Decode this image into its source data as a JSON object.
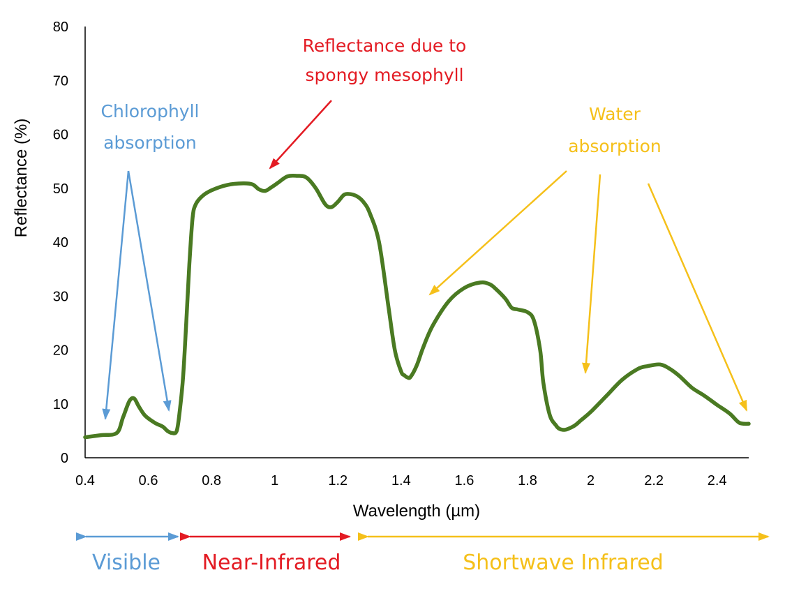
{
  "chart_data": {
    "type": "line",
    "xlabel": "Wavelength (µm)",
    "ylabel": "Reflectance (%)",
    "xlim": [
      0.4,
      2.5
    ],
    "ylim": [
      0,
      80
    ],
    "x_ticks": [
      "0.4",
      "0.6",
      "0.8",
      "1",
      "1.2",
      "1.4",
      "1.6",
      "1.8",
      "2",
      "2.2",
      "2.4"
    ],
    "x_tick_values": [
      0.4,
      0.6,
      0.8,
      1.0,
      1.2,
      1.4,
      1.6,
      1.8,
      2.0,
      2.2,
      2.4
    ],
    "y_ticks": [
      "0",
      "10",
      "20",
      "30",
      "40",
      "50",
      "60",
      "70",
      "80"
    ],
    "y_tick_values": [
      0,
      10,
      20,
      30,
      40,
      50,
      60,
      70,
      80
    ],
    "grid": false,
    "legend": "none",
    "series": [
      {
        "color": "#4a7a22",
        "x": [
          0.4,
          0.45,
          0.5,
          0.52,
          0.54,
          0.555,
          0.57,
          0.59,
          0.62,
          0.645,
          0.66,
          0.675,
          0.69,
          0.7,
          0.71,
          0.72,
          0.73,
          0.74,
          0.75,
          0.77,
          0.8,
          0.85,
          0.9,
          0.93,
          0.95,
          0.97,
          0.99,
          1.01,
          1.04,
          1.07,
          1.1,
          1.13,
          1.16,
          1.18,
          1.2,
          1.22,
          1.24,
          1.26,
          1.28,
          1.3,
          1.33,
          1.36,
          1.38,
          1.4,
          1.41,
          1.42,
          1.43,
          1.45,
          1.47,
          1.5,
          1.55,
          1.6,
          1.65,
          1.68,
          1.7,
          1.73,
          1.75,
          1.77,
          1.8,
          1.82,
          1.84,
          1.85,
          1.87,
          1.89,
          1.9,
          1.91,
          1.92,
          1.93,
          1.95,
          1.97,
          2.0,
          2.05,
          2.1,
          2.15,
          2.18,
          2.22,
          2.25,
          2.28,
          2.32,
          2.36,
          2.4,
          2.44,
          2.47,
          2.5
        ],
        "y": [
          3.8,
          4.2,
          4.6,
          7.5,
          10.5,
          11.0,
          9.5,
          7.8,
          6.5,
          5.8,
          5.0,
          4.6,
          5.0,
          9.0,
          15.0,
          25.0,
          36.0,
          44.5,
          47.0,
          48.5,
          49.6,
          50.6,
          50.9,
          50.7,
          49.8,
          49.5,
          50.2,
          51.0,
          52.2,
          52.3,
          52.0,
          50.0,
          47.0,
          46.5,
          47.5,
          48.8,
          48.9,
          48.5,
          47.5,
          45.5,
          40.0,
          28.0,
          20.0,
          16.0,
          15.3,
          14.9,
          15.0,
          17.2,
          20.5,
          24.5,
          29.0,
          31.5,
          32.5,
          32.2,
          31.3,
          29.5,
          27.8,
          27.5,
          27.0,
          25.5,
          20.0,
          14.0,
          8.0,
          6.0,
          5.4,
          5.2,
          5.2,
          5.4,
          6.0,
          7.0,
          8.5,
          11.5,
          14.5,
          16.5,
          17.0,
          17.3,
          16.5,
          15.2,
          13.0,
          11.5,
          9.8,
          8.2,
          6.5,
          6.3
        ]
      }
    ],
    "annotations": [
      {
        "text": [
          "Chlorophyll",
          "absorption"
        ],
        "color": "#5b9bd5"
      },
      {
        "text": [
          "Reflectance due to",
          "spongy mesophyll"
        ],
        "color": "#e31b23"
      },
      {
        "text": [
          "Water",
          "absorption"
        ],
        "color": "#f5c01a"
      }
    ],
    "regions": [
      {
        "label": "Visible",
        "color": "#5b9bd5"
      },
      {
        "label": "Near-Infrared",
        "color": "#e31b23"
      },
      {
        "label": "Shortwave Infrared",
        "color": "#f5c01a"
      }
    ]
  }
}
